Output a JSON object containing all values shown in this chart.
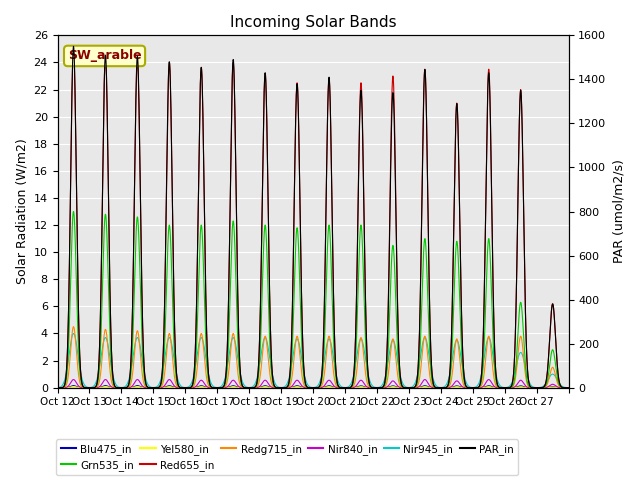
{
  "title": "Incoming Solar Bands",
  "ylabel_left": "Solar Radiation (W/m2)",
  "ylabel_right": "PAR (umol/m2/s)",
  "annotation": "SW_arable",
  "ylim_left": [
    0,
    26
  ],
  "ylim_right": [
    0,
    1600
  ],
  "yticks_left": [
    0,
    2,
    4,
    6,
    8,
    10,
    12,
    14,
    16,
    18,
    20,
    22,
    24,
    26
  ],
  "yticks_right": [
    0,
    200,
    400,
    600,
    800,
    1000,
    1200,
    1400,
    1600
  ],
  "n_days": 16,
  "peak_values": {
    "Red655_in": [
      25.0,
      24.5,
      24.2,
      24.0,
      23.6,
      24.0,
      23.2,
      22.5,
      22.8,
      22.5,
      23.0,
      23.5,
      21.0,
      23.5,
      22.0,
      6.2
    ],
    "PAR_in": [
      1550,
      1510,
      1505,
      1480,
      1455,
      1490,
      1430,
      1380,
      1410,
      1350,
      1340,
      1445,
      1290,
      1430,
      1350,
      380
    ],
    "Grn535_in": [
      13.0,
      12.8,
      12.6,
      12.0,
      12.0,
      12.3,
      12.0,
      11.8,
      12.0,
      12.0,
      10.5,
      11.0,
      10.8,
      11.0,
      6.3,
      2.8
    ],
    "Redg715_in": [
      4.5,
      4.3,
      4.2,
      4.0,
      4.0,
      4.0,
      3.8,
      3.8,
      3.8,
      3.7,
      3.6,
      3.8,
      3.6,
      3.8,
      3.8,
      1.5
    ],
    "Nir840_in": [
      0.6,
      0.6,
      0.6,
      0.6,
      0.55,
      0.55,
      0.55,
      0.55,
      0.55,
      0.55,
      0.5,
      0.6,
      0.5,
      0.6,
      0.55,
      0.25
    ],
    "Nir945_in": [
      4.0,
      3.7,
      3.7,
      3.7,
      3.7,
      3.7,
      3.7,
      3.6,
      3.6,
      3.6,
      3.5,
      3.7,
      3.5,
      3.7,
      2.6,
      1.0
    ],
    "Blu475_in": [
      0.15,
      0.15,
      0.15,
      0.14,
      0.14,
      0.14,
      0.14,
      0.14,
      0.14,
      0.13,
      0.13,
      0.14,
      0.13,
      0.14,
      0.13,
      0.06
    ],
    "Yel580_in": [
      0.08,
      0.08,
      0.08,
      0.07,
      0.07,
      0.07,
      0.07,
      0.07,
      0.07,
      0.07,
      0.07,
      0.07,
      0.07,
      0.07,
      0.06,
      0.03
    ]
  },
  "widths": {
    "Red655_in": 0.09,
    "PAR_in": 0.09,
    "Grn535_in": 0.09,
    "Redg715_in": 0.09,
    "Nir840_in": 0.09,
    "Nir945_in": 0.14,
    "Blu475_in": 0.09,
    "Yel580_in": 0.09
  },
  "x_tick_labels": [
    "Oct 12",
    "Oct 13",
    "Oct 14",
    "Oct 15",
    "Oct 16",
    "Oct 17",
    "Oct 18",
    "Oct 19",
    "Oct 20",
    "Oct 21",
    "Oct 22",
    "Oct 23",
    "Oct 24",
    "Oct 25",
    "Oct 26",
    "Oct 27"
  ],
  "bg_color": "#e8e8e8",
  "legend_colors": {
    "Blu475_in": "#0000bb",
    "Grn535_in": "#00cc00",
    "Yel580_in": "#ffff00",
    "Red655_in": "#cc0000",
    "Redg715_in": "#ff8800",
    "Nir840_in": "#cc00cc",
    "Nir945_in": "#00cccc",
    "PAR_in": "#000000"
  },
  "legend_order_row1": [
    "Blu475_in",
    "Grn535_in",
    "Yel580_in",
    "Red655_in",
    "Redg715_in",
    "Nir840_in"
  ],
  "legend_order_row2": [
    "Nir945_in",
    "PAR_in"
  ]
}
